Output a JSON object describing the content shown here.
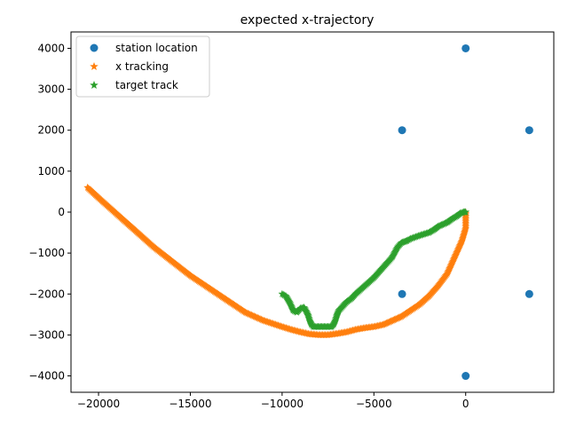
{
  "chart_data": {
    "type": "scatter",
    "title": "expected x-trajectory",
    "xlabel": "",
    "ylabel": "",
    "xlim": [
      -21500,
      4800
    ],
    "ylim": [
      -4400,
      4400
    ],
    "xticks": [
      -20000,
      -15000,
      -10000,
      -5000,
      0
    ],
    "xtick_labels": [
      "−20000",
      "−15000",
      "−10000",
      "−5000",
      "0"
    ],
    "yticks": [
      -4000,
      -3000,
      -2000,
      -1000,
      0,
      1000,
      2000,
      3000,
      4000
    ],
    "ytick_labels": [
      "−4000",
      "−3000",
      "−2000",
      "−1000",
      "0",
      "1000",
      "2000",
      "3000",
      "4000"
    ],
    "grid": false,
    "legend_position": "top-left",
    "series": [
      {
        "name": "station location",
        "marker": "circle",
        "color": "#1f77b4",
        "x": [
          0,
          -3464,
          3464,
          -3464,
          3464,
          0
        ],
        "y": [
          4000,
          2000,
          2000,
          -2000,
          -2000,
          -4000
        ]
      },
      {
        "name": "x tracking",
        "marker": "star",
        "color": "#ff7f0e",
        "x": [
          -20600,
          -20000,
          -19000,
          -18000,
          -17000,
          -16000,
          -15000,
          -14000,
          -13000,
          -12000,
          -11000,
          -10000,
          -9500,
          -9000,
          -8500,
          -8000,
          -7500,
          -7000,
          -6500,
          -6000,
          -5500,
          -5000,
          -4500,
          -4000,
          -3500,
          -3000,
          -2500,
          -2000,
          -1500,
          -1000,
          -700,
          -400,
          -200,
          -100,
          0,
          0,
          0
        ],
        "y": [
          600,
          350,
          -50,
          -450,
          -850,
          -1200,
          -1550,
          -1850,
          -2150,
          -2450,
          -2650,
          -2800,
          -2870,
          -2930,
          -2980,
          -3000,
          -3000,
          -2970,
          -2930,
          -2870,
          -2830,
          -2800,
          -2750,
          -2650,
          -2550,
          -2400,
          -2250,
          -2050,
          -1800,
          -1500,
          -1200,
          -900,
          -700,
          -550,
          -400,
          -200,
          0
        ]
      },
      {
        "name": "target track",
        "marker": "star",
        "color": "#2ca02c",
        "x": [
          -10000,
          -9800,
          -9600,
          -9400,
          -9200,
          -9000,
          -8800,
          -8600,
          -8500,
          -8400,
          -8300,
          -8100,
          -7900,
          -7700,
          -7500,
          -7300,
          -7200,
          -7100,
          -7000,
          -6900,
          -6700,
          -6500,
          -6200,
          -6000,
          -5500,
          -5000,
          -4500,
          -4000,
          -3700,
          -3500,
          -3200,
          -3000,
          -2500,
          -2000,
          -1700,
          -1500,
          -1000,
          -800,
          -500,
          -300,
          -100,
          0
        ],
        "y": [
          -2000,
          -2050,
          -2200,
          -2400,
          -2450,
          -2350,
          -2330,
          -2500,
          -2650,
          -2750,
          -2800,
          -2800,
          -2800,
          -2800,
          -2800,
          -2800,
          -2750,
          -2650,
          -2500,
          -2400,
          -2300,
          -2200,
          -2100,
          -2000,
          -1800,
          -1600,
          -1350,
          -1100,
          -850,
          -750,
          -700,
          -650,
          -570,
          -500,
          -420,
          -350,
          -250,
          -180,
          -100,
          -30,
          0,
          0
        ]
      }
    ]
  }
}
